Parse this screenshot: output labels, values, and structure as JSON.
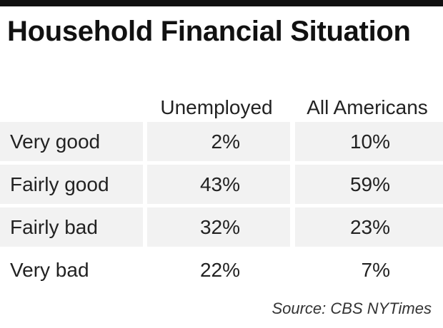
{
  "chart_data": {
    "type": "table",
    "title": "Household Financial Situation",
    "columns": [
      "Unemployed",
      "All Americans"
    ],
    "rows": [
      {
        "label": "Very good",
        "values": [
          "2%",
          "10%"
        ]
      },
      {
        "label": "Fairly good",
        "values": [
          "43%",
          "59%"
        ]
      },
      {
        "label": "Fairly bad",
        "values": [
          "32%",
          "23%"
        ]
      },
      {
        "label": "Very bad",
        "values": [
          "22%",
          "7%"
        ]
      }
    ],
    "source": "Source: CBS NYTimes"
  },
  "colors": {
    "rule": "#111111",
    "row_shade": "#f2f2f2",
    "text": "#222222"
  }
}
